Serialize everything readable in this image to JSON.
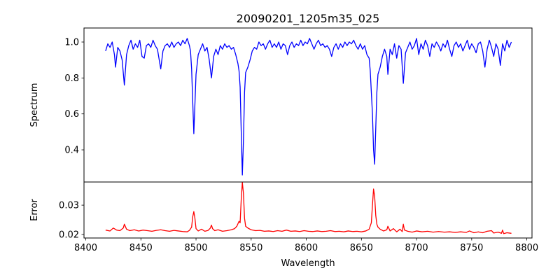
{
  "chart_data": [
    {
      "type": "line",
      "title": "20090201_1205m35_025",
      "xlabel": "",
      "ylabel": "Spectrum",
      "xlim": [
        8398.4,
        8804.7
      ],
      "ylim": [
        0.221,
        1.078
      ],
      "yticks": [
        0.4,
        0.6,
        0.8,
        1.0
      ],
      "ytick_labels": [
        "0.4",
        "0.6",
        "0.8",
        "1.0"
      ],
      "grid": false,
      "color": "#0000ff",
      "x": [
        8418,
        8420,
        8422,
        8424,
        8426,
        8427,
        8429,
        8431,
        8433,
        8435,
        8437,
        8439,
        8441,
        8443,
        8445,
        8447,
        8449,
        8451,
        8453,
        8455,
        8457,
        8459,
        8461,
        8463,
        8465,
        8468,
        8470,
        8472,
        8474,
        8476,
        8478,
        8480,
        8482,
        8484,
        8486,
        8488,
        8490,
        8492,
        8494,
        8495,
        8496,
        8498,
        8500,
        8502,
        8504,
        8506,
        8508,
        8510,
        8512,
        8514,
        8516,
        8518,
        8520,
        8522,
        8524,
        8526,
        8528,
        8530,
        8532,
        8534,
        8536,
        8538,
        8539,
        8540,
        8541,
        8542,
        8543,
        8544,
        8545,
        8547,
        8549,
        8551,
        8553,
        8555,
        8557,
        8559,
        8561,
        8563,
        8565,
        8567,
        8569,
        8571,
        8573,
        8575,
        8577,
        8579,
        8581,
        8583,
        8585,
        8587,
        8589,
        8591,
        8593,
        8595,
        8597,
        8599,
        8601,
        8603,
        8605,
        8607,
        8609,
        8611,
        8613,
        8615,
        8617,
        8619,
        8621,
        8623,
        8625,
        8627,
        8629,
        8631,
        8633,
        8635,
        8637,
        8639,
        8641,
        8643,
        8645,
        8647,
        8649,
        8651,
        8653,
        8655,
        8657,
        8658,
        8660,
        8661,
        8662,
        8663,
        8664,
        8665,
        8667,
        8669,
        8671,
        8673,
        8674,
        8676,
        8678,
        8680,
        8682,
        8684,
        8686,
        8688,
        8690,
        8692,
        8694,
        8696,
        8698,
        8700,
        8702,
        8704,
        8706,
        8708,
        8710,
        8712,
        8714,
        8716,
        8718,
        8720,
        8722,
        8724,
        8726,
        8728,
        8730,
        8732,
        8734,
        8736,
        8738,
        8740,
        8742,
        8744,
        8746,
        8748,
        8750,
        8752,
        8754,
        8756,
        8758,
        8760,
        8762,
        8764,
        8766,
        8768,
        8770,
        8772,
        8774,
        8776,
        8778,
        8780,
        8782,
        8784,
        8786
      ],
      "y": [
        0.95,
        0.99,
        0.97,
        1.0,
        0.93,
        0.86,
        0.97,
        0.95,
        0.9,
        0.76,
        0.93,
        0.98,
        1.01,
        0.96,
        0.99,
        0.97,
        1.01,
        0.92,
        0.91,
        0.98,
        0.99,
        0.97,
        1.01,
        0.98,
        0.96,
        0.85,
        0.95,
        0.98,
        0.99,
        0.97,
        1.0,
        0.97,
        0.99,
        1.0,
        0.98,
        1.01,
        0.99,
        1.02,
        0.98,
        0.95,
        0.85,
        0.49,
        0.82,
        0.93,
        0.96,
        0.99,
        0.95,
        0.97,
        0.9,
        0.8,
        0.92,
        0.96,
        0.93,
        0.98,
        0.96,
        0.99,
        0.97,
        0.98,
        0.96,
        0.97,
        0.93,
        0.88,
        0.84,
        0.75,
        0.5,
        0.26,
        0.45,
        0.72,
        0.83,
        0.86,
        0.9,
        0.95,
        0.97,
        0.96,
        1.0,
        0.98,
        0.99,
        0.96,
        0.99,
        1.01,
        0.97,
        0.99,
        0.97,
        1.0,
        0.96,
        0.99,
        0.98,
        0.93,
        0.98,
        1.0,
        0.97,
        0.99,
        0.98,
        1.01,
        0.98,
        1.0,
        0.99,
        1.02,
        0.99,
        0.96,
        0.99,
        1.01,
        0.98,
        0.99,
        0.97,
        0.98,
        0.96,
        0.92,
        0.97,
        0.99,
        0.96,
        0.99,
        0.97,
        1.0,
        0.98,
        1.0,
        0.99,
        1.01,
        0.98,
        0.96,
        0.99,
        0.96,
        0.98,
        0.93,
        0.91,
        0.84,
        0.6,
        0.4,
        0.32,
        0.52,
        0.72,
        0.82,
        0.86,
        0.92,
        0.96,
        0.92,
        0.82,
        0.96,
        0.93,
        0.99,
        0.91,
        0.98,
        0.96,
        0.77,
        0.94,
        0.97,
        1.0,
        0.96,
        0.98,
        1.02,
        0.93,
        0.99,
        0.96,
        1.01,
        0.98,
        0.92,
        0.99,
        0.97,
        1.0,
        0.98,
        0.95,
        0.99,
        0.97,
        1.01,
        0.96,
        0.92,
        0.98,
        1.0,
        0.97,
        0.99,
        0.95,
        0.98,
        1.01,
        0.96,
        0.99,
        0.97,
        0.94,
        0.99,
        1.0,
        0.95,
        0.86,
        0.96,
        1.01,
        0.97,
        0.92,
        0.99,
        0.96,
        0.87,
        0.99,
        0.95,
        1.01,
        0.97,
        1.0
      ]
    },
    {
      "type": "line",
      "title": "",
      "xlabel": "Wavelength",
      "ylabel": "Error",
      "xlim": [
        8398.4,
        8804.7
      ],
      "ylim": [
        0.0188,
        0.0379
      ],
      "xticks": [
        8400,
        8450,
        8500,
        8550,
        8600,
        8650,
        8700,
        8750,
        8800
      ],
      "xtick_labels": [
        "8400",
        "8450",
        "8500",
        "8550",
        "8600",
        "8650",
        "8700",
        "8750",
        "8800"
      ],
      "yticks": [
        0.02,
        0.03
      ],
      "ytick_labels": [
        "0.02",
        "0.03"
      ],
      "grid": false,
      "color": "#ff0000",
      "x": [
        8418,
        8422,
        8425,
        8428,
        8431,
        8434,
        8435,
        8437,
        8440,
        8444,
        8448,
        8452,
        8456,
        8460,
        8464,
        8468,
        8472,
        8476,
        8480,
        8484,
        8488,
        8492,
        8494,
        8496,
        8497,
        8498,
        8499,
        8500,
        8502,
        8505,
        8508,
        8511,
        8513,
        8514,
        8515,
        8517,
        8520,
        8524,
        8528,
        8532,
        8535,
        8537,
        8539,
        8540,
        8541,
        8542,
        8543,
        8544,
        8545,
        8547,
        8550,
        8554,
        8558,
        8562,
        8566,
        8570,
        8574,
        8578,
        8582,
        8586,
        8590,
        8594,
        8598,
        8602,
        8606,
        8610,
        8614,
        8618,
        8622,
        8626,
        8630,
        8634,
        8638,
        8642,
        8646,
        8650,
        8654,
        8657,
        8659,
        8660,
        8661,
        8662,
        8663,
        8664,
        8665,
        8667,
        8670,
        8673,
        8674,
        8676,
        8679,
        8682,
        8685,
        8687,
        8688,
        8689,
        8692,
        8696,
        8700,
        8705,
        8710,
        8715,
        8720,
        8725,
        8730,
        8735,
        8740,
        8745,
        8748,
        8752,
        8756,
        8760,
        8764,
        8768,
        8770,
        8774,
        8777,
        8778,
        8779,
        8782,
        8786
      ],
      "y": [
        0.0215,
        0.0212,
        0.0222,
        0.0215,
        0.0213,
        0.0222,
        0.0235,
        0.0218,
        0.0213,
        0.0216,
        0.0212,
        0.0215,
        0.0213,
        0.0211,
        0.0214,
        0.0216,
        0.0213,
        0.0211,
        0.0214,
        0.0212,
        0.021,
        0.0209,
        0.0214,
        0.0225,
        0.026,
        0.0278,
        0.0255,
        0.022,
        0.0212,
        0.0218,
        0.0211,
        0.0214,
        0.0222,
        0.0232,
        0.022,
        0.0213,
        0.0216,
        0.0211,
        0.0213,
        0.0216,
        0.022,
        0.0228,
        0.0245,
        0.024,
        0.032,
        0.0378,
        0.034,
        0.0255,
        0.0228,
        0.0222,
        0.0216,
        0.0213,
        0.0214,
        0.0211,
        0.0212,
        0.021,
        0.0213,
        0.0211,
        0.0215,
        0.0211,
        0.0212,
        0.021,
        0.0213,
        0.0211,
        0.021,
        0.0212,
        0.021,
        0.0211,
        0.0213,
        0.021,
        0.0211,
        0.0209,
        0.0212,
        0.021,
        0.0211,
        0.0209,
        0.0212,
        0.0218,
        0.024,
        0.03,
        0.0355,
        0.033,
        0.0265,
        0.0235,
        0.0225,
        0.0218,
        0.0212,
        0.0216,
        0.0228,
        0.0212,
        0.022,
        0.0209,
        0.0218,
        0.021,
        0.0235,
        0.0215,
        0.0211,
        0.0208,
        0.0212,
        0.0209,
        0.0211,
        0.0208,
        0.021,
        0.0208,
        0.0209,
        0.0207,
        0.0209,
        0.0207,
        0.0212,
        0.0206,
        0.0209,
        0.0206,
        0.0211,
        0.0213,
        0.0205,
        0.0208,
        0.0204,
        0.0215,
        0.0203,
        0.0206,
        0.0204
      ]
    }
  ]
}
